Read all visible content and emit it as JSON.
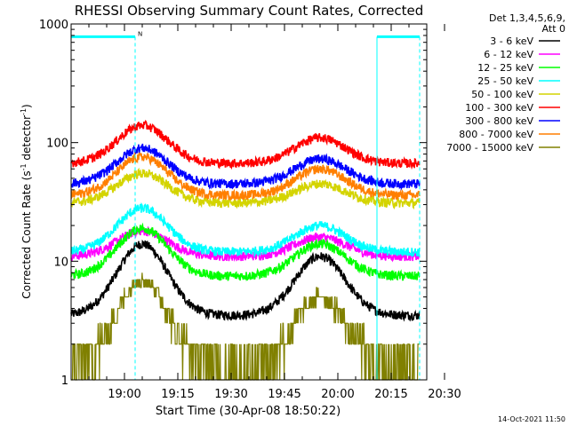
{
  "chart_data": {
    "type": "line",
    "title": "RHESSI Observing Summary Count Rates, Corrected",
    "xlabel": "Start Time (30-Apr-08 18:50:22)",
    "ylabel": "Corrected Count Rate (s⁻¹ detector⁻¹)",
    "ylabel_main": "Corrected Count Rate (s",
    "ylabel_sup1": "-1",
    "ylabel_mid": " detector",
    "ylabel_sup2": "-1",
    "ylabel_end": ")",
    "yscale": "log",
    "ylim": [
      1,
      1000
    ],
    "xlim_minutes": [
      -5,
      95
    ],
    "x_tick_labels": [
      "19:00",
      "19:15",
      "19:30",
      "19:45",
      "20:00",
      "20:15",
      "20:30"
    ],
    "x_tick_minutes": [
      10,
      25,
      40,
      55,
      70,
      85,
      100
    ],
    "y_tick_labels": [
      "1",
      "10",
      "100",
      "1000"
    ],
    "y_tick_values": [
      1,
      10,
      100,
      1000
    ],
    "legend_header": [
      "Det 1,3,4,5,6,9,",
      "Att 0"
    ],
    "legend_position": "top-right",
    "series": [
      {
        "name": "3 - 6 keV",
        "color": "#000000",
        "base": 3.5,
        "peak1": 14,
        "peak2": 11
      },
      {
        "name": "6 - 12 keV",
        "color": "#ff00ff",
        "base": 11,
        "peak1": 18,
        "peak2": 16
      },
      {
        "name": "12 - 25 keV",
        "color": "#00ff00",
        "base": 7.5,
        "peak1": 19,
        "peak2": 14
      },
      {
        "name": "25 - 50 keV",
        "color": "#00ffff",
        "base": 12,
        "peak1": 28,
        "peak2": 20
      },
      {
        "name": "50 - 100 keV",
        "color": "#d4d400",
        "base": 31,
        "peak1": 55,
        "peak2": 45
      },
      {
        "name": "100 - 300 keV",
        "color": "#ff0000",
        "base": 67,
        "peak1": 140,
        "peak2": 110
      },
      {
        "name": "300 - 800 keV",
        "color": "#0000ff",
        "base": 45,
        "peak1": 90,
        "peak2": 73
      },
      {
        "name": "800 - 7000 keV",
        "color": "#ff7f00",
        "base": 36,
        "peak1": 76,
        "peak2": 60
      },
      {
        "name": "7000 - 15000 keV",
        "color": "#808000",
        "base": 1.4,
        "peak1": 7,
        "peak2": 5
      }
    ],
    "peak_minutes": [
      15,
      65
    ],
    "peak_widths_minutes": [
      10,
      10
    ],
    "attenuator_markers_minutes": [
      13,
      81,
      93
    ],
    "attenuator_bar": {
      "color": "#00ffff",
      "label": "N",
      "segments_minutes": [
        [
          -5,
          13
        ],
        [
          81,
          93
        ]
      ],
      "level": 780
    }
  },
  "footer": {
    "timestamp": "14-Oct-2021 11:50"
  }
}
